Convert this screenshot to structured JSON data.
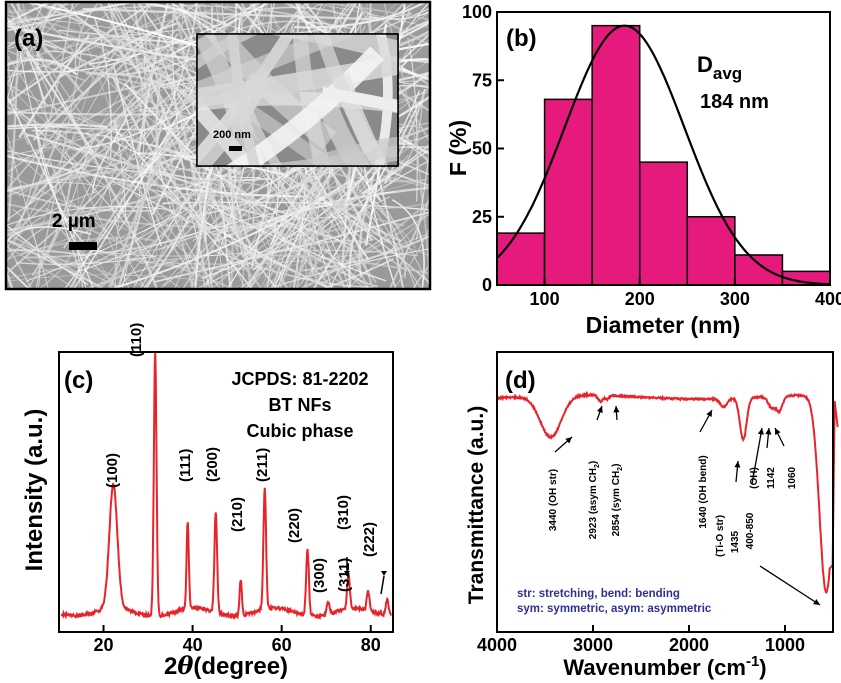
{
  "chart_data": [
    {
      "panel": "(a)",
      "type": "image",
      "scale_bar_label": "2 µm",
      "inset_scale_bar_label": "200 nm"
    },
    {
      "panel": "(b)",
      "type": "bar",
      "xlabel": "Diameter (nm)",
      "ylabel": "F (%)",
      "xlim": [
        50,
        400
      ],
      "ylim": [
        0,
        100
      ],
      "xticks": [
        100,
        200,
        300,
        400
      ],
      "yticks": [
        0,
        25,
        50,
        75,
        100
      ],
      "bins": [
        [
          50,
          100
        ],
        [
          100,
          150
        ],
        [
          150,
          200
        ],
        [
          200,
          250
        ],
        [
          250,
          300
        ],
        [
          300,
          350
        ],
        [
          350,
          400
        ]
      ],
      "values": [
        19,
        68,
        95,
        45,
        25,
        11,
        5
      ],
      "fit_curve": {
        "type": "gaussian",
        "center": 184,
        "peak": 95,
        "sigma": 63
      },
      "annotation": {
        "main": "D",
        "subscript": "avg",
        "value": "184 nm"
      },
      "colors": {
        "bar": "#E6197D",
        "fit": "#000000"
      }
    },
    {
      "panel": "(c)",
      "type": "line",
      "xlabel_prefix": "2",
      "xlabel_symbol": "θ",
      "xlabel_suffix": "(degree)",
      "ylabel": "Intensity (a.u.)",
      "xlim": [
        10,
        85
      ],
      "xticks": [
        20,
        40,
        60,
        80
      ],
      "baseline": 0.07,
      "peaks": [
        {
          "x": 22.2,
          "h": 0.47,
          "w": 0.9
        },
        {
          "x": 31.6,
          "h": 1.0,
          "w": 0.3
        },
        {
          "x": 38.9,
          "h": 0.33,
          "w": 0.25
        },
        {
          "x": 45.2,
          "h": 0.38,
          "w": 0.3
        },
        {
          "x": 50.8,
          "h": 0.14,
          "w": 0.25
        },
        {
          "x": 56.2,
          "h": 0.46,
          "w": 0.3
        },
        {
          "x": 65.8,
          "h": 0.25,
          "w": 0.3
        },
        {
          "x": 70.4,
          "h": 0.05,
          "w": 0.3
        },
        {
          "x": 75.0,
          "h": 0.13,
          "w": 0.3
        },
        {
          "x": 79.4,
          "h": 0.07,
          "w": 0.3
        },
        {
          "x": 83.7,
          "h": 0.06,
          "w": 0.3
        }
      ],
      "peak_labels": [
        "(100)",
        "(110)",
        "(111)",
        "(200)",
        "(210)",
        "(211)",
        "(220)",
        "(300)",
        "(310)",
        "(311)",
        "(222)"
      ],
      "annotations": [
        "JCPDS: 81-2202",
        "BT NFs",
        "Cubic phase"
      ],
      "colors": {
        "line": "#E8242B"
      }
    },
    {
      "panel": "(d)",
      "type": "line",
      "xlabel": "Wavenumber (cm",
      "xlabel_superscript": "-1",
      "xlabel_close": ")",
      "ylabel": "Transmittance (a.u.)",
      "xlim": [
        4000,
        500
      ],
      "xticks": [
        4000,
        3000,
        2000,
        1000
      ],
      "bands": [
        {
          "x": 3440,
          "depth": 0.2,
          "w": 110
        },
        {
          "x": 2923,
          "depth": 0.03,
          "w": 25
        },
        {
          "x": 2854,
          "depth": 0.02,
          "w": 20
        },
        {
          "x": 1640,
          "depth": 0.04,
          "w": 35
        },
        {
          "x": 1435,
          "depth": 0.2,
          "w": 35
        },
        {
          "x": 1142,
          "depth": 0.05,
          "w": 35
        },
        {
          "x": 1060,
          "depth": 0.07,
          "w": 35
        },
        {
          "x": 570,
          "depth": 0.95,
          "w": 70
        }
      ],
      "band_labels": [
        {
          "text": "3440 (OH str)"
        },
        {
          "text": "2923 (asym CH",
          "sub": "2",
          "close": ")"
        },
        {
          "text": "2854 (sym CH",
          "sub": "2",
          "close": ")"
        },
        {
          "text": "1640 (OH bend)"
        },
        {
          "text": "(Ti-O str)"
        },
        {
          "text": "1435"
        },
        {
          "text": "400-850"
        },
        {
          "text": "(OH)"
        },
        {
          "text": "1142"
        },
        {
          "text": "1060"
        }
      ],
      "legend_lines": [
        "str: stretching, bend: bending",
        "sym: symmetric, asym: asymmetric"
      ],
      "colors": {
        "line": "#E8242B",
        "legend_text": "#2E3192"
      }
    }
  ]
}
